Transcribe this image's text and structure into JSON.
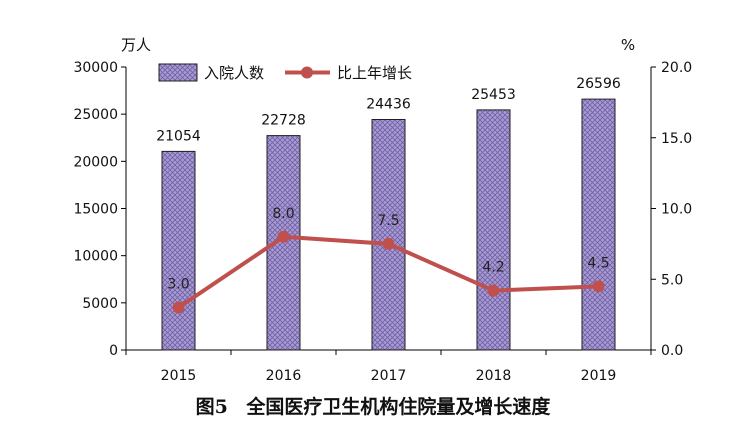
{
  "chart_data": {
    "type": "bar",
    "categories": [
      "2015",
      "2016",
      "2017",
      "2018",
      "2019"
    ],
    "series": [
      {
        "name": "入院人数",
        "type": "bar",
        "axis": "left",
        "values": [
          21054,
          22728,
          24436,
          25453,
          26596
        ],
        "labels": [
          "21054",
          "22728",
          "24436",
          "25453",
          "26596"
        ]
      },
      {
        "name": "比上年增长",
        "type": "line",
        "axis": "right",
        "values": [
          3.0,
          8.0,
          7.5,
          4.2,
          4.5
        ],
        "labels": [
          "3.0",
          "8.0",
          "7.5",
          "4.2",
          "4.5"
        ]
      }
    ],
    "ylabel": "万人",
    "ylabel_right": "%",
    "ylim": [
      0,
      30000
    ],
    "ylim_right": [
      0,
      20.0
    ],
    "yticks": [
      "0",
      "5000",
      "10000",
      "15000",
      "20000",
      "25000",
      "30000"
    ],
    "yticks_right": [
      "0.0",
      "5.0",
      "10.0",
      "15.0",
      "20.0"
    ],
    "grid": false,
    "legend": "top-center",
    "colors": {
      "bar_fill": "#a99bd0",
      "bar_border": "#1f1f1f",
      "line": "#c0504d",
      "axis": "#000000"
    }
  },
  "caption": {
    "number": "图5",
    "title": "全国医疗卫生机构住院量及增长速度"
  }
}
